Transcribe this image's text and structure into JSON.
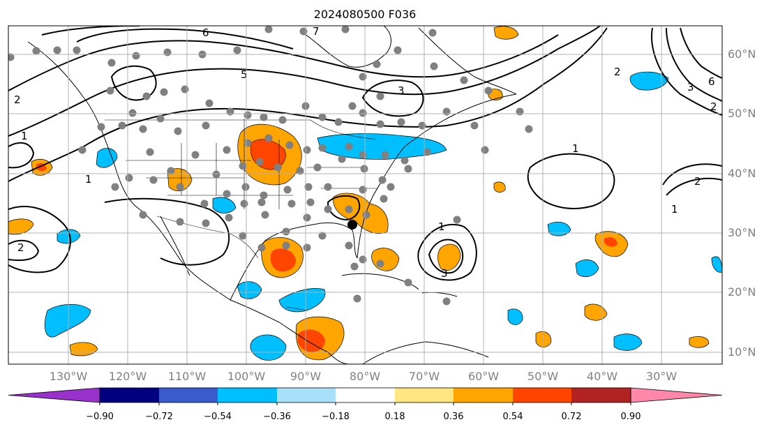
{
  "title": "2024080500 F036",
  "map": {
    "lon_labels": [
      "130°W",
      "120°W",
      "110°W",
      "100°W",
      "90°W",
      "80°W",
      "70°W",
      "60°W",
      "50°W",
      "40°W",
      "30°W"
    ],
    "lat_labels": [
      "60°N",
      "50°N",
      "40°N",
      "30°N",
      "20°N",
      "10°N"
    ],
    "contour_labels": [
      "1",
      "2",
      "3",
      "5",
      "6",
      "7"
    ]
  },
  "colorbar": {
    "ticks": [
      "−0.90",
      "−0.72",
      "−0.54",
      "−0.36",
      "−0.18",
      "0.18",
      "0.36",
      "0.54",
      "0.72",
      "0.90"
    ],
    "colors": {
      "under": "#9932cc",
      "bins": [
        "#000080",
        "#3a5bcc",
        "#00bfff",
        "#a9e1fa",
        "#ffffff",
        "#ffe680",
        "#ffa500",
        "#ff4500",
        "#b22222"
      ],
      "over": "#ff88aa"
    }
  },
  "colors": {
    "grid": "#b0b0b0",
    "station_dot": "#808080",
    "coast": "#000000",
    "contour": "#000000"
  }
}
